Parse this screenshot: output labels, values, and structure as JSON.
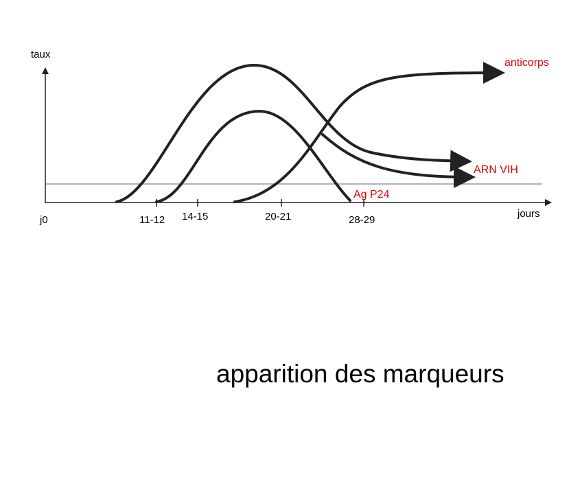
{
  "axes": {
    "y_label": "taux",
    "x_label": "jours",
    "x_ticks": [
      "j0",
      "11-12",
      "14-15",
      "20-21",
      "28-29"
    ]
  },
  "curves": {
    "anticorps": "anticorps",
    "arn": "ARN VIH",
    "p24": "Ag P24"
  },
  "title": "apparition des marqueurs"
}
